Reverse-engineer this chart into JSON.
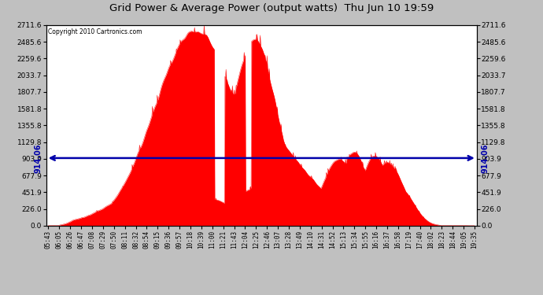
{
  "title": "Grid Power & Average Power (output watts)  Thu Jun 10 19:59",
  "copyright": "Copyright 2010 Cartronics.com",
  "average_line_value": 914.06,
  "yticks": [
    0.0,
    226.0,
    451.9,
    677.9,
    903.9,
    1129.8,
    1355.8,
    1581.8,
    1807.7,
    2033.7,
    2259.6,
    2485.6,
    2711.6
  ],
  "ymax": 2711.6,
  "fill_color": "#FF0000",
  "line_color": "#0000AA",
  "background_color": "#C0C0C0",
  "plot_bg_color": "#FFFFFF",
  "grid_color": "#AAAAAA",
  "title_color": "#000000",
  "x_labels": [
    "05:43",
    "06:05",
    "06:26",
    "06:47",
    "07:08",
    "07:29",
    "07:50",
    "08:11",
    "08:32",
    "08:54",
    "09:15",
    "09:36",
    "09:57",
    "10:18",
    "10:39",
    "11:00",
    "11:21",
    "11:43",
    "12:04",
    "12:25",
    "12:46",
    "13:07",
    "13:28",
    "13:49",
    "14:10",
    "14:31",
    "14:52",
    "15:13",
    "15:34",
    "15:55",
    "16:16",
    "16:37",
    "16:58",
    "17:19",
    "17:40",
    "18:02",
    "18:23",
    "18:44",
    "19:05",
    "19:35"
  ],
  "num_points": 800,
  "seed": 12345
}
